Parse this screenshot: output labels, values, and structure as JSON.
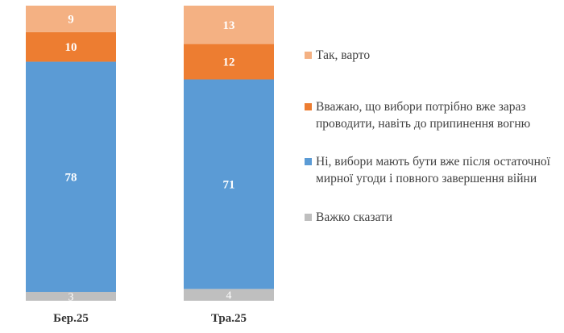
{
  "chart_data": {
    "type": "bar",
    "stacked": true,
    "categories": [
      "Бер.25",
      "Тра.25"
    ],
    "series": [
      {
        "name": "Важко сказати",
        "color": "#bfbfbf",
        "values": [
          3,
          4
        ]
      },
      {
        "name": "Ні, вибори мають бути вже після остаточної мирної угоди і повного завершення війни",
        "color": "#5b9bd5",
        "values": [
          78,
          71
        ]
      },
      {
        "name": "Вважаю, що вибори потрібно вже зараз проводити, навіть до припинення вогню",
        "color": "#ed7d31",
        "values": [
          10,
          12
        ]
      },
      {
        "name": "Так, варто",
        "color": "#f4b183",
        "values": [
          9,
          13
        ]
      }
    ],
    "legend_order": [
      "Так, варто",
      "Вважаю, що вибори потрібно вже зараз проводити, навіть до припинення вогню",
      "Ні, вибори мають бути вже після остаточної мирної угоди і повного завершення війни",
      "Важко сказати"
    ],
    "legend_position": "right",
    "ylim": [
      0,
      100
    ],
    "grid": false,
    "title": "",
    "xlabel": "",
    "ylabel": ""
  }
}
